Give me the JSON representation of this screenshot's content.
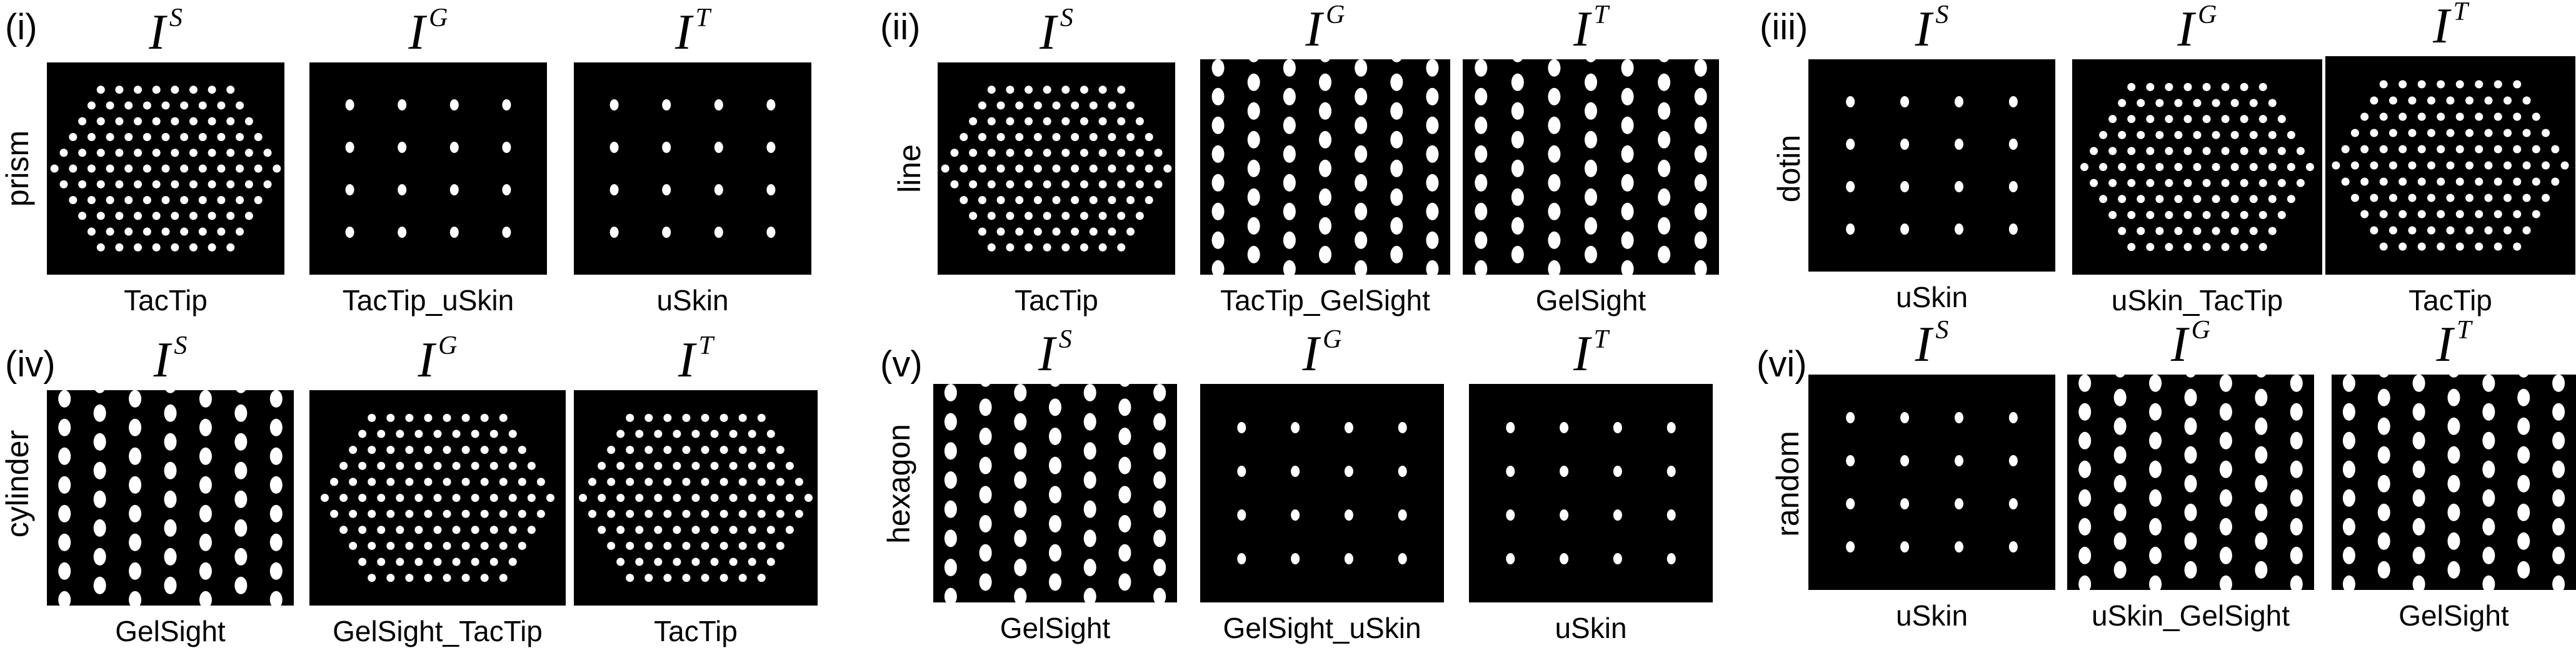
{
  "header": {
    "symbol": "I",
    "sup": [
      "S",
      "G",
      "T"
    ]
  },
  "groups": [
    {
      "label": "(i)",
      "row_label": "prism",
      "captions": [
        "TacTip",
        "TacTip_uSkin",
        "uSkin"
      ],
      "patterns": [
        "hex",
        "grid",
        "grid"
      ]
    },
    {
      "label": "(ii)",
      "row_label": "line",
      "captions": [
        "TacTip",
        "TacTip_GelSight",
        "GelSight"
      ],
      "patterns": [
        "hex",
        "gel",
        "gel"
      ]
    },
    {
      "label": "(iii)",
      "row_label": "dotin",
      "captions": [
        "uSkin",
        "uSkin_TacTip",
        "TacTip"
      ],
      "patterns": [
        "grid",
        "hex",
        "hex"
      ]
    },
    {
      "label": "(iv)",
      "row_label": "cylinder",
      "captions": [
        "GelSight",
        "GelSight_TacTip",
        "TacTip"
      ],
      "patterns": [
        "gel",
        "hex",
        "hex"
      ]
    },
    {
      "label": "(v)",
      "row_label": "hexagon",
      "captions": [
        "GelSight",
        "GelSight_uSkin",
        "uSkin"
      ],
      "patterns": [
        "gel",
        "grid",
        "grid"
      ]
    },
    {
      "label": "(vi)",
      "row_label": "random",
      "captions": [
        "uSkin",
        "uSkin_GelSight",
        "GelSight"
      ],
      "patterns": [
        "grid",
        "gel",
        "gel"
      ]
    }
  ],
  "colors": {
    "panel_bg": "#000000",
    "marker": "#ffffff"
  }
}
